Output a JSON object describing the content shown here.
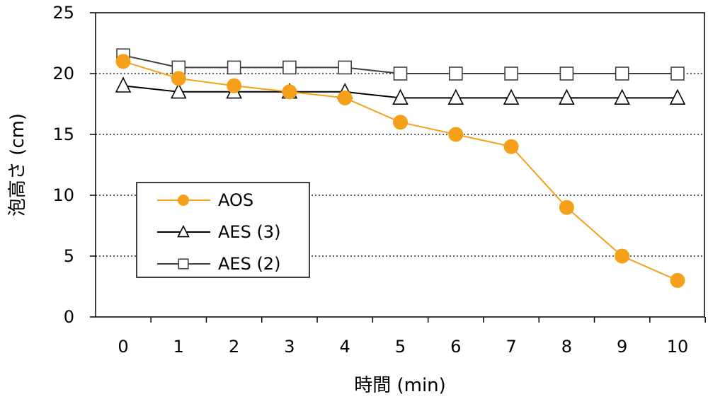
{
  "chart_data": {
    "type": "line",
    "xlabel": "時間 (min)",
    "ylabel": "泡高さ (cm)",
    "x": [
      0,
      1,
      2,
      3,
      4,
      5,
      6,
      7,
      8,
      9,
      10
    ],
    "xticks": [
      "0",
      "1",
      "2",
      "3",
      "4",
      "5",
      "6",
      "7",
      "8",
      "9",
      "10"
    ],
    "yticks": [
      "0",
      "5",
      "10",
      "15",
      "20",
      "25"
    ],
    "ylim": [
      0,
      25
    ],
    "grid": "horizontal-dotted",
    "legend_position": "center-left",
    "series": [
      {
        "name": "AOS",
        "marker": "circle",
        "color": "#F5A01A",
        "values": [
          21.0,
          19.6,
          19.0,
          18.5,
          18.0,
          16.0,
          15.0,
          14.0,
          9.0,
          5.0,
          3.0
        ]
      },
      {
        "name": "AES (3)",
        "marker": "triangle",
        "color": "#000000",
        "values": [
          19.0,
          18.5,
          18.5,
          18.5,
          18.5,
          18.0,
          18.0,
          18.0,
          18.0,
          18.0,
          18.0
        ]
      },
      {
        "name": "AES (2)",
        "marker": "square",
        "color": "#404040",
        "values": [
          21.5,
          20.5,
          20.5,
          20.5,
          20.5,
          20.0,
          20.0,
          20.0,
          20.0,
          20.0,
          20.0
        ]
      }
    ]
  }
}
